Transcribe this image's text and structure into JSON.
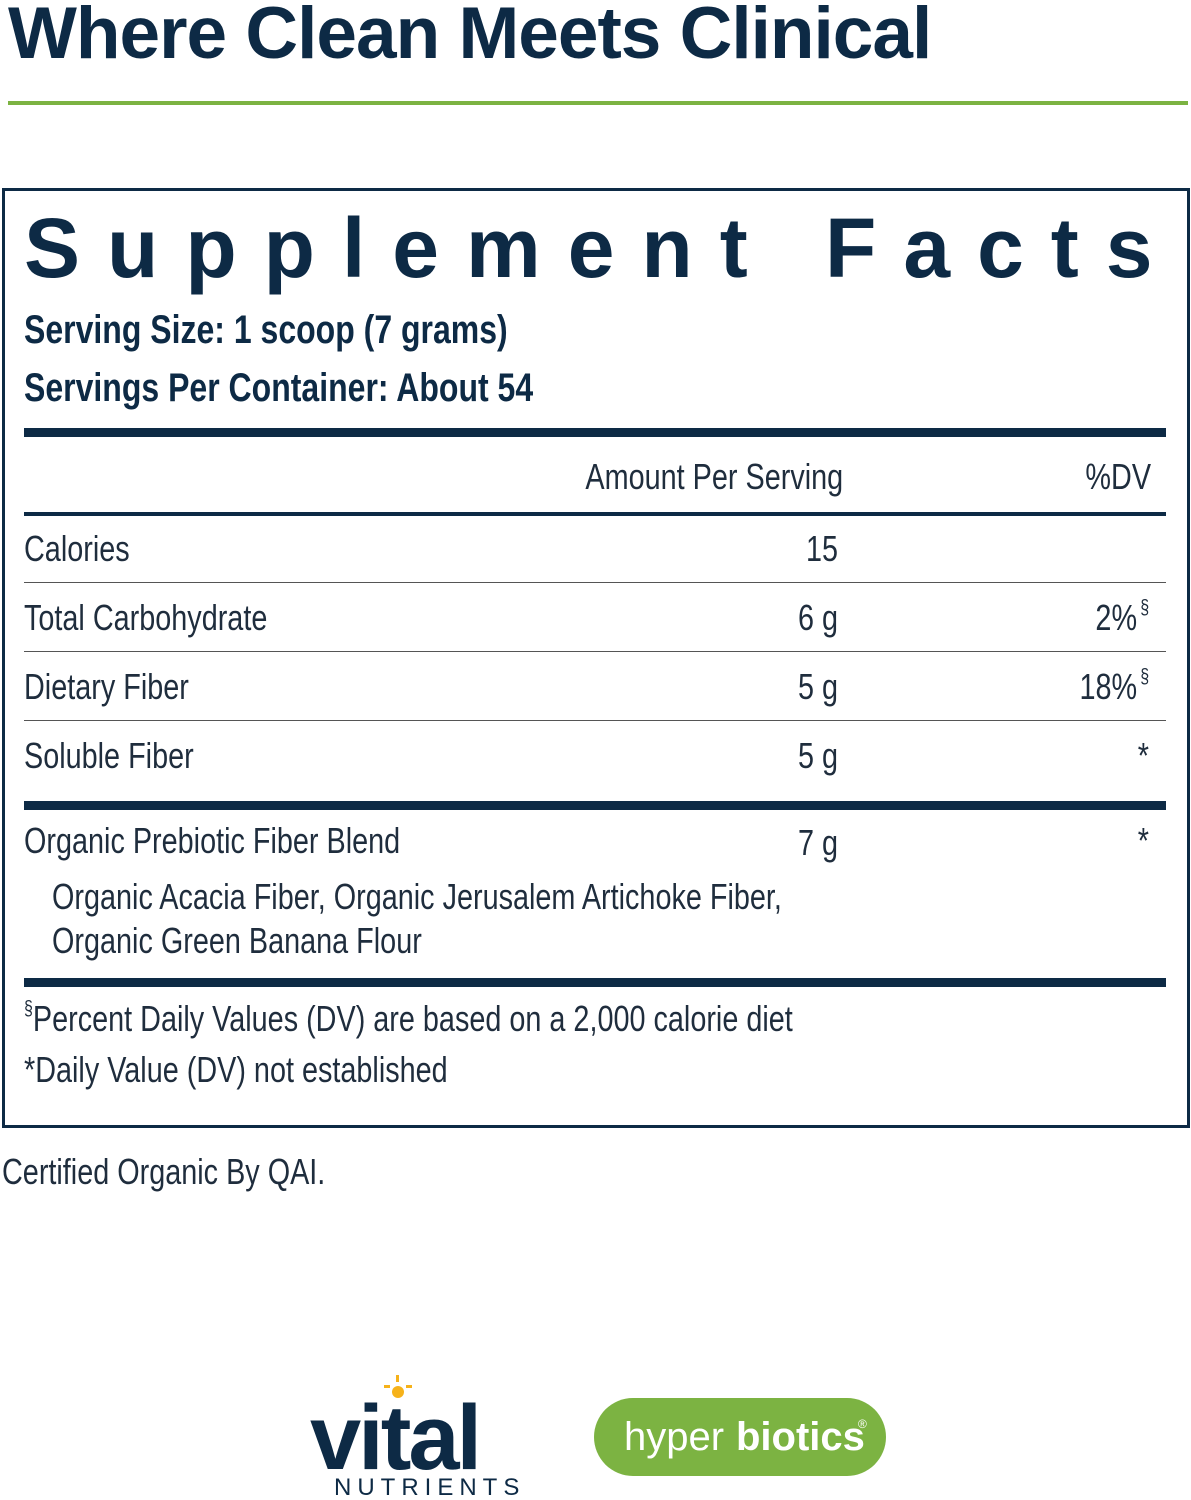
{
  "header": {
    "title": "Where Clean Meets Clinical"
  },
  "facts": {
    "title": "Supplement Facts",
    "serving_size": "Serving Size: 1 scoop (7 grams)",
    "servings_per_container": "Servings Per Container: About 54",
    "columns": [
      "Amount Per Serving",
      "%DV"
    ],
    "rows": [
      {
        "name": "Calories",
        "amount": "15"
      },
      {
        "name": "Total Carbohydrate",
        "amount": "6 g",
        "dv": "2%",
        "dv_mark": "§"
      },
      {
        "name": "Dietary Fiber",
        "amount": "5 g",
        "dv": "18%",
        "dv_mark": "§"
      },
      {
        "name": "Soluble Fiber",
        "amount": "5 g",
        "dv": "*"
      }
    ],
    "blend": {
      "name": "Organic Prebiotic Fiber Blend",
      "amount": "7 g",
      "dv": "*",
      "ingredients": [
        "Organic Acacia Fiber, Organic Jerusalem Artichoke Fiber,",
        "Organic Green Banana Flour"
      ]
    },
    "footnotes": [
      {
        "symbol": "§",
        "text": "Percent Daily Values (DV) are based on a 2,000 calorie diet"
      },
      {
        "text": "*Daily Value (DV) not established"
      }
    ]
  },
  "certification": "Certified Organic By QAI.",
  "logos": {
    "vital": "vital",
    "nutrients": "NUTRIENTS",
    "hyper": "hyper",
    "biotics": "biotics",
    "registered": "®"
  }
}
